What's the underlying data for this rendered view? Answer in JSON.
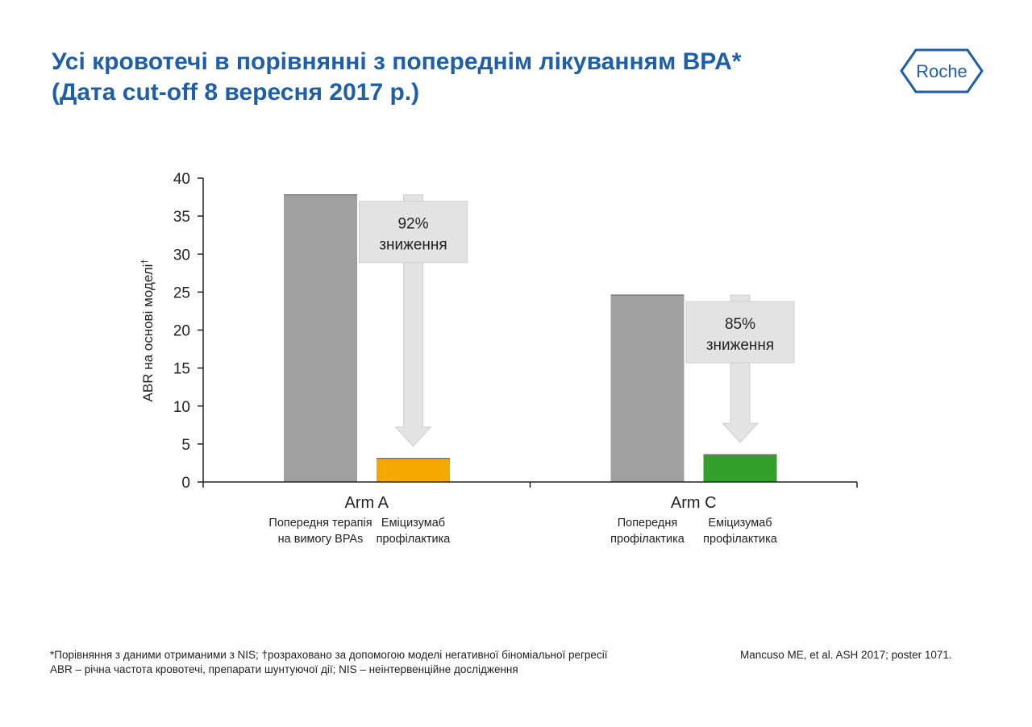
{
  "header": {
    "title_line1": "Усі кровотечі в порівнянні з попереднім лікуванням BPA*",
    "title_line2": "(Дата cut-off 8 вересня 2017 р.)",
    "logo_text": "Roche"
  },
  "colors": {
    "title": "#1f5fa8",
    "prior": "#a0a0a0",
    "arm_a_emicizumab": "#f5a800",
    "arm_c_emicizumab": "#33a02c",
    "arrow": "#e3e3e3"
  },
  "chart_data": {
    "type": "bar",
    "ylabel": "ABR на основі моделі",
    "ylabel_sup": "†",
    "ylim": [
      0,
      40
    ],
    "yticks": [
      0,
      5,
      10,
      15,
      20,
      25,
      30,
      35,
      40
    ],
    "groups": [
      {
        "name": "Arm A",
        "bars": [
          {
            "label_line1": "Попередня терапія",
            "label_line2": "на вимогу BPAs",
            "value": 37.8,
            "color": "#a0a0a0"
          },
          {
            "label_line1": "Еміцизумаб",
            "label_line2": "профілактика",
            "value": 3.1,
            "color": "#f5a800"
          }
        ],
        "reduction_pct": "92%",
        "reduction_word": "зниження"
      },
      {
        "name": "Arm C",
        "bars": [
          {
            "label_line1": "Попередня",
            "label_line2": "профілактика",
            "value": 24.6,
            "color": "#a0a0a0"
          },
          {
            "label_line1": "Еміцизумаб",
            "label_line2": "профілактика",
            "value": 3.6,
            "color": "#33a02c"
          }
        ],
        "reduction_pct": "85%",
        "reduction_word": "зниження"
      }
    ]
  },
  "footer": {
    "note_line1": "*Порівняння з даними отриманими з NIS; †розраховано за допомогою моделі негативної біноміальної регресії",
    "note_line2": "ABR – річна частота кровотечі, препарати шунтуючої дії; NIS – неінтервенційне дослідження",
    "source": "Mancuso ME, et al. ASH 2017; poster 1071."
  }
}
